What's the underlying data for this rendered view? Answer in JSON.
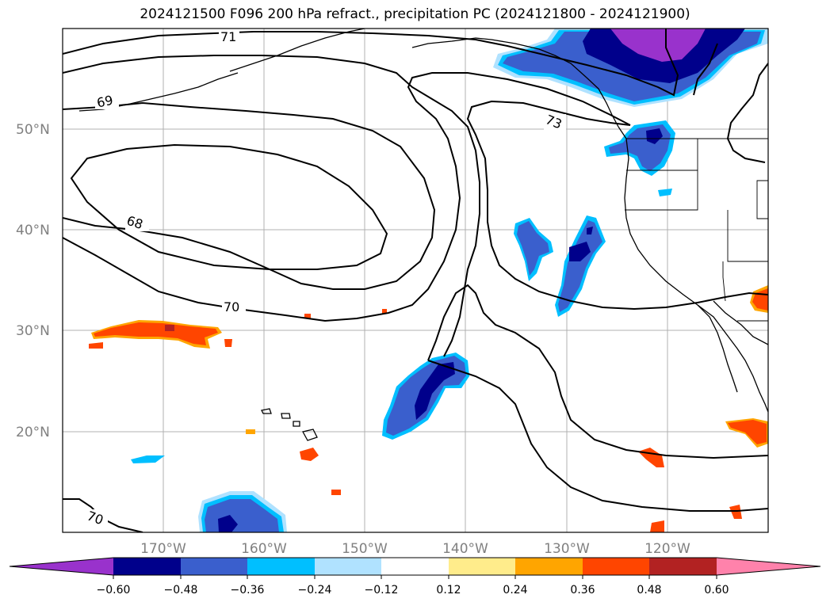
{
  "title": "2024121500 F096 200 hPa refract., precipitation PC (2024121800 - 2024121900)",
  "map": {
    "lat_labels": [
      "50°N",
      "40°N",
      "30°N",
      "20°N"
    ],
    "lon_labels": [
      "170°W",
      "160°W",
      "150°W",
      "140°W",
      "130°W",
      "120°W"
    ],
    "contour_labels": [
      "71",
      "69",
      "73",
      "68",
      "70",
      "70"
    ],
    "extent": {
      "lon_min": -180,
      "lon_max": -110,
      "lat_min": 10,
      "lat_max": 60
    }
  },
  "colorbar": {
    "ticks": [
      "−0.60",
      "−0.48",
      "−0.36",
      "−0.24",
      "−0.12",
      "0.12",
      "0.24",
      "0.36",
      "0.48",
      "0.60"
    ],
    "colors": [
      "#9932cc",
      "#00008b",
      "#3a5fcd",
      "#00bfff",
      "#b0e2ff",
      "#ffffff",
      "#ffec8b",
      "#ffa500",
      "#ff4500",
      "#b22222",
      "#ff82ab"
    ]
  },
  "colors": {
    "purple": "#9932cc",
    "navy": "#00008b",
    "royalblue": "#3a5fcd",
    "deepskyblue": "#00bfff",
    "lightblue": "#b0e2ff",
    "lightyellow": "#ffec8b",
    "orange": "#ffa500",
    "orangered": "#ff4500",
    "firebrick": "#b22222",
    "pink": "#ff82ab"
  }
}
